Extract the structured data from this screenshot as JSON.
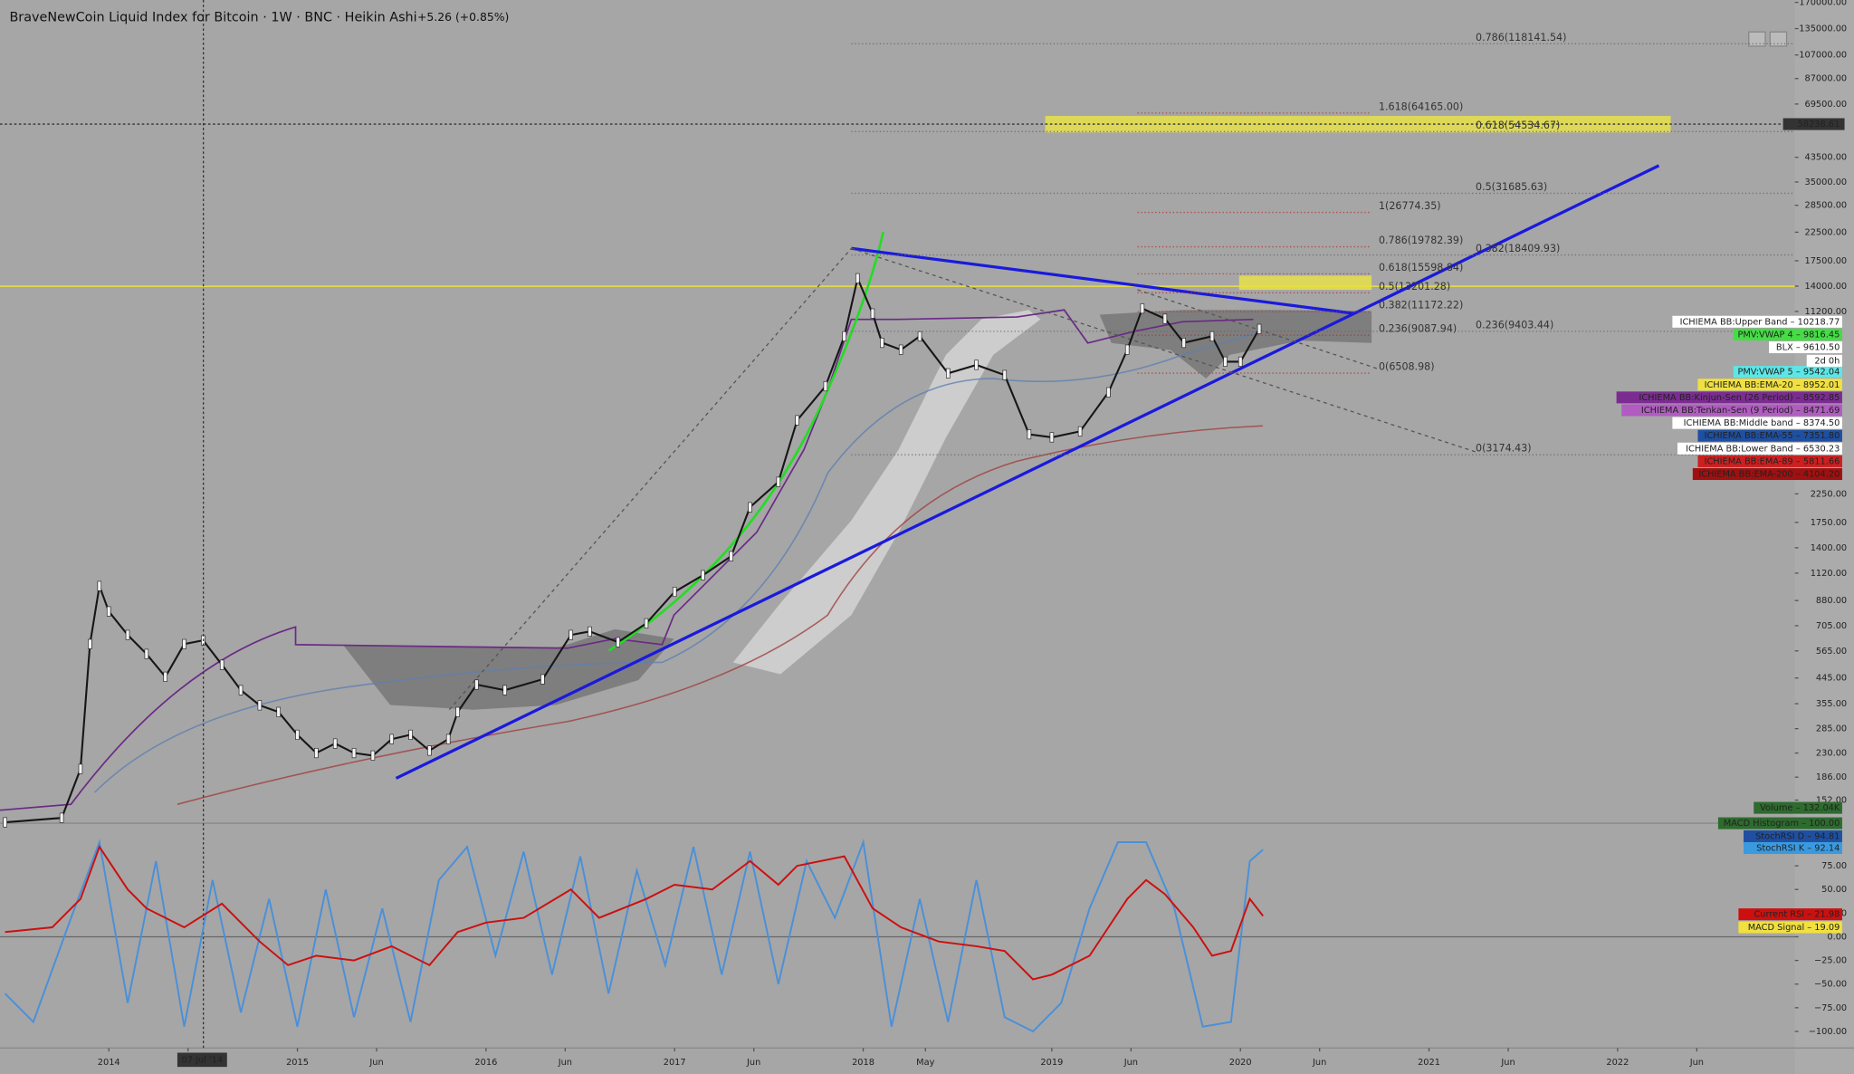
{
  "header": {
    "symbol": "BraveNewCoin Liquid Index for Bitcoin · 1W · BNC · Heikin Ashi",
    "change": "+5.26 (+0.85%)"
  },
  "chart_data": {
    "type": "line",
    "log_scale": true,
    "color": "#161616",
    "xlim": [
      2013.423,
      2022.94
    ],
    "ylim": [
      132,
      170000
    ],
    "x": [
      2013.45,
      2013.75,
      2013.85,
      2013.9,
      2013.95,
      2014.0,
      2014.1,
      2014.2,
      2014.3,
      2014.4,
      2014.5,
      2014.6,
      2014.7,
      2014.8,
      2014.9,
      2015.0,
      2015.1,
      2015.2,
      2015.3,
      2015.4,
      2015.5,
      2015.6,
      2015.7,
      2015.8,
      2015.85,
      2015.95,
      2016.1,
      2016.3,
      2016.45,
      2016.55,
      2016.7,
      2016.85,
      2017.0,
      2017.15,
      2017.3,
      2017.4,
      2017.55,
      2017.65,
      2017.8,
      2017.9,
      2017.97,
      2018.05,
      2018.1,
      2018.2,
      2018.3,
      2018.45,
      2018.6,
      2018.75,
      2018.88,
      2019.0,
      2019.15,
      2019.3,
      2019.4,
      2019.48,
      2019.6,
      2019.7,
      2019.85,
      2019.92,
      2020.0,
      2020.1
    ],
    "values": [
      125,
      130,
      200,
      600,
      1000,
      800,
      650,
      550,
      450,
      600,
      620,
      500,
      400,
      350,
      330,
      270,
      230,
      250,
      230,
      225,
      260,
      270,
      235,
      260,
      330,
      420,
      400,
      440,
      650,
      670,
      610,
      720,
      950,
      1100,
      1300,
      2000,
      2500,
      4300,
      5800,
      9000,
      15000,
      11000,
      8500,
      8000,
      9000,
      6500,
      7000,
      6400,
      3800,
      3700,
      3900,
      5500,
      8000,
      11500,
      10500,
      8500,
      9000,
      7200,
      7200,
      9600
    ],
    "yticks": [
      {
        "value": 170000,
        "label": "170000.00"
      },
      {
        "value": 135000,
        "label": "135000.00"
      },
      {
        "value": 107000,
        "label": "107000.00"
      },
      {
        "value": 87000,
        "label": "87000.00"
      },
      {
        "value": 69500,
        "label": "69500.00"
      },
      {
        "value": 43500,
        "label": "43500.00"
      },
      {
        "value": 35000,
        "label": "35000.00"
      },
      {
        "value": 28500,
        "label": "28500.00"
      },
      {
        "value": 22500,
        "label": "22500.00"
      },
      {
        "value": 17500,
        "label": "17500.00"
      },
      {
        "value": 14000,
        "label": "14000.00"
      },
      {
        "value": 11200,
        "label": "11200.00"
      },
      {
        "value": 2250,
        "label": "2250.00"
      },
      {
        "value": 1750,
        "label": "1750.00"
      },
      {
        "value": 1400,
        "label": "1400.00"
      },
      {
        "value": 1120,
        "label": "1120.00"
      },
      {
        "value": 880,
        "label": "880.00"
      },
      {
        "value": 705,
        "label": "705.00"
      },
      {
        "value": 565,
        "label": "565.00"
      },
      {
        "value": 445,
        "label": "445.00"
      },
      {
        "value": 355,
        "label": "355.00"
      },
      {
        "value": 285,
        "label": "285.00"
      },
      {
        "value": 230,
        "label": "230.00"
      },
      {
        "value": 186,
        "label": "186.00"
      },
      {
        "value": 152,
        "label": "152.00"
      }
    ],
    "xticks": [
      2014,
      {
        "value": 2014.42,
        "label": "Jun"
      },
      2015,
      {
        "value": 2015.42,
        "label": "Jun"
      },
      2016,
      {
        "value": 2016.42,
        "label": "Jun"
      },
      2017,
      {
        "value": 2017.42,
        "label": "Jun"
      },
      2018,
      {
        "value": 2018.33,
        "label": "May"
      },
      2019,
      {
        "value": 2019.42,
        "label": "Jun"
      },
      2020,
      {
        "value": 2020.42,
        "label": "Jun"
      },
      2021,
      {
        "value": 2021.42,
        "label": "Jun"
      },
      2022,
      {
        "value": 2022.42,
        "label": "Jun"
      }
    ],
    "fib_sets": [
      {
        "levels": [
          {
            "value": 118141.54,
            "label": "0.786(118141.54)"
          },
          {
            "value": 54534.67,
            "label": "0.618(54534.67)"
          },
          {
            "value": 31685.63,
            "label": "0.5(31685.63)"
          },
          {
            "value": 18409.93,
            "label": "0.382(18409.93)"
          },
          {
            "value": 9403.44,
            "label": "0.236(9403.44)"
          },
          {
            "value": 3174.43,
            "label": "0(3174.43)"
          }
        ]
      },
      {
        "levels": [
          {
            "value": 64165.0,
            "label": "1.618(64165.00)"
          },
          {
            "value": 26774.35,
            "label": "1(26774.35)"
          },
          {
            "value": 19782.39,
            "label": "0.786(19782.39)"
          },
          {
            "value": 15598.84,
            "label": "0.618(15598.84)"
          },
          {
            "value": 13201.28,
            "label": "0.5(13201.28)"
          },
          {
            "value": 11172.22,
            "label": "0.382(11172.22)"
          },
          {
            "value": 9087.94,
            "label": "0.236(9087.94)"
          },
          {
            "value": 6508.98,
            "label": "0(6508.98)"
          }
        ]
      }
    ],
    "crosshair": {
      "date": "07 Jul '14",
      "price": 58238.61
    },
    "countdown": "2d 0h",
    "price_tags": [
      {
        "label": "ICHIEMA BB:Upper Band – 10218.77",
        "color": "#ffffff",
        "text": "#000000"
      },
      {
        "label": "PMV:VWAP 4 – 9816.45",
        "color": "#44dd44",
        "text": "#000000"
      },
      {
        "label": "BLX – 9610.50",
        "color": "#ffffff",
        "text": "#000000"
      },
      {
        "label": "PMV:VWAP 5 – 9542.04",
        "color": "#5ee6e6",
        "text": "#000000"
      },
      {
        "label": "ICHIEMA BB:EMA-20 – 8952.01",
        "color": "#f0e040",
        "text": "#000000"
      },
      {
        "label": "ICHIEMA BB:Kinjun-Sen (26 Period) – 8592.85",
        "color": "#7b2c91",
        "text": "#ffffff"
      },
      {
        "label": "ICHIEMA BB:Tenkan-Sen (9 Period) – 8471.69",
        "color": "#b05cc0",
        "text": "#ffffff"
      },
      {
        "label": "ICHIEMA BB:Middle band – 8374.50",
        "color": "#ffffff",
        "text": "#000000"
      },
      {
        "label": "ICHIEMA BB:EMA-55 – 7351.80",
        "color": "#1f4fa0",
        "text": "#ffffff"
      },
      {
        "label": "ICHIEMA BB:Lower Band – 6530.23",
        "color": "#ffffff",
        "text": "#000000"
      },
      {
        "label": "ICHIEMA BB:EMA-89 – 5811.66",
        "color": "#cc2020",
        "text": "#ffffff"
      },
      {
        "label": "ICHIEMA BB:EMA-200 – 4104.20",
        "color": "#a01010",
        "text": "#ffffff"
      }
    ]
  },
  "oscillator": {
    "ylim": [
      -112.5,
      112.5
    ],
    "yticks": [
      {
        "value": 75,
        "label": "75.00"
      },
      {
        "value": 50,
        "label": "50.00"
      },
      {
        "value": 25,
        "label": "25.00"
      },
      {
        "value": 0,
        "label": "0.00"
      },
      {
        "value": -25,
        "label": "−25.00"
      },
      {
        "value": -50,
        "label": "−50.00"
      },
      {
        "value": -75,
        "label": "−75.00"
      },
      {
        "value": -100,
        "label": "−100.00"
      }
    ],
    "series": [
      {
        "color": "#4a90d9",
        "x": [
          2013.45,
          2013.6,
          2013.8,
          2013.95,
          2014.1,
          2014.25,
          2014.4,
          2014.55,
          2014.7,
          2014.85,
          2015.0,
          2015.15,
          2015.3,
          2015.45,
          2015.6,
          2015.75,
          2015.9,
          2016.05,
          2016.2,
          2016.35,
          2016.5,
          2016.65,
          2016.8,
          2016.95,
          2017.1,
          2017.25,
          2017.4,
          2017.55,
          2017.7,
          2017.85,
          2018.0,
          2018.15,
          2018.3,
          2018.45,
          2018.6,
          2018.75,
          2018.9,
          2019.05,
          2019.2,
          2019.35,
          2019.5,
          2019.65,
          2019.8,
          2019.95,
          2020.05,
          2020.12
        ],
        "values": [
          -60,
          -90,
          20,
          100,
          -70,
          80,
          -95,
          60,
          -80,
          40,
          -95,
          50,
          -85,
          30,
          -90,
          60,
          95,
          -20,
          90,
          -40,
          85,
          -60,
          70,
          -30,
          95,
          -40,
          90,
          -50,
          80,
          20,
          100,
          -95,
          40,
          -90,
          60,
          -85,
          -100,
          -70,
          30,
          100,
          100,
          30,
          -95,
          -90,
          80,
          92.14
        ]
      },
      {
        "color": "#cc1010",
        "x": [
          2013.45,
          2013.7,
          2013.85,
          2013.95,
          2014.1,
          2014.2,
          2014.4,
          2014.6,
          2014.8,
          2014.95,
          2015.1,
          2015.3,
          2015.5,
          2015.7,
          2015.85,
          2016.0,
          2016.2,
          2016.45,
          2016.6,
          2016.85,
          2017.0,
          2017.2,
          2017.4,
          2017.55,
          2017.65,
          2017.9,
          2018.05,
          2018.2,
          2018.4,
          2018.6,
          2018.75,
          2018.9,
          2019.0,
          2019.2,
          2019.4,
          2019.5,
          2019.6,
          2019.75,
          2019.85,
          2019.95,
          2020.05,
          2020.12
        ],
        "values": [
          5,
          10,
          40,
          95,
          50,
          30,
          10,
          35,
          -5,
          -30,
          -20,
          -25,
          -10,
          -30,
          5,
          15,
          20,
          50,
          20,
          40,
          55,
          50,
          80,
          55,
          75,
          85,
          30,
          10,
          -5,
          -10,
          -15,
          -45,
          -40,
          -20,
          40,
          60,
          45,
          10,
          -20,
          -15,
          40,
          21.98
        ]
      }
    ],
    "tags": [
      {
        "label": "Volume – 132.04K",
        "color": "#2e6b2e",
        "text": "#ffffff"
      },
      {
        "label": "MACD Histogram – 100.00",
        "color": "#2e6b2e",
        "text": "#ffffff"
      },
      {
        "label": "StochRSI D – 94.81",
        "color": "#1f4fa0",
        "text": "#ffffff"
      },
      {
        "label": "StochRSI K – 92.14",
        "color": "#3a9ae0",
        "text": "#ffffff"
      },
      {
        "label": "Current RSI – 21.98",
        "color": "#cc1010",
        "text": "#ffffff"
      },
      {
        "label": "MACD Signal – 19.09",
        "color": "#f0e040",
        "text": "#000000"
      }
    ]
  }
}
